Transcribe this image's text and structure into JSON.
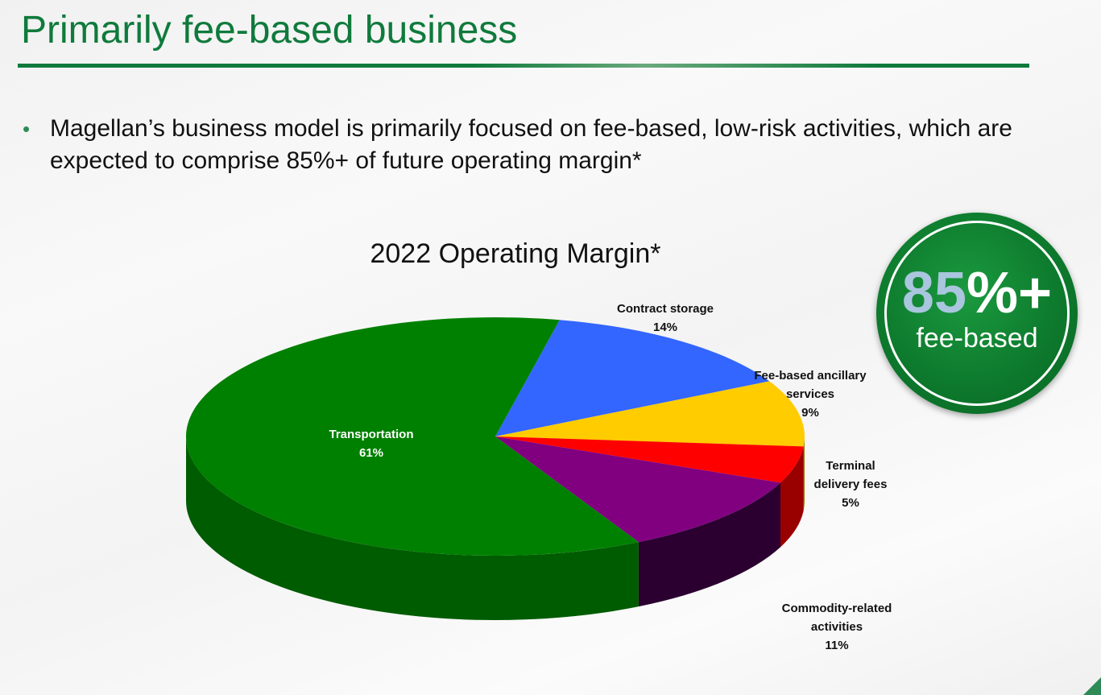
{
  "slide": {
    "title": "Primarily fee-based business",
    "bullet": "Magellan’s business model is primarily focused on fee-based, low-risk activities, which are expected to comprise 85%+ of future operating margin*"
  },
  "badge": {
    "number": "85",
    "suffix": "%+",
    "caption": "fee-based",
    "color": "#0d7a2d"
  },
  "chart_data": {
    "type": "pie",
    "title": "2022 Operating Margin*",
    "slices": [
      {
        "name_lines": [
          "Contract storage"
        ],
        "value": 14,
        "value_label": "14%",
        "color": "#3366ff",
        "side": "#1f3d99"
      },
      {
        "name_lines": [
          "Fee-based ancillary",
          "services"
        ],
        "value": 9,
        "value_label": "9%",
        "color": "#ffcc00",
        "side": "#997a00"
      },
      {
        "name_lines": [
          "Terminal",
          "delivery fees"
        ],
        "value": 5,
        "value_label": "5%",
        "color": "#ff0000",
        "side": "#990000"
      },
      {
        "name_lines": [
          "Commodity-related",
          "activities"
        ],
        "value": 11,
        "value_label": "11%",
        "color": "#800080",
        "side": "#2b0030"
      },
      {
        "name_lines": [
          "Transportation"
        ],
        "value": 61,
        "value_label": "61%",
        "color": "#008000",
        "side": "#005c00"
      }
    ],
    "label_color_inside": "#ffffff",
    "label_color_outside": "#111111"
  }
}
